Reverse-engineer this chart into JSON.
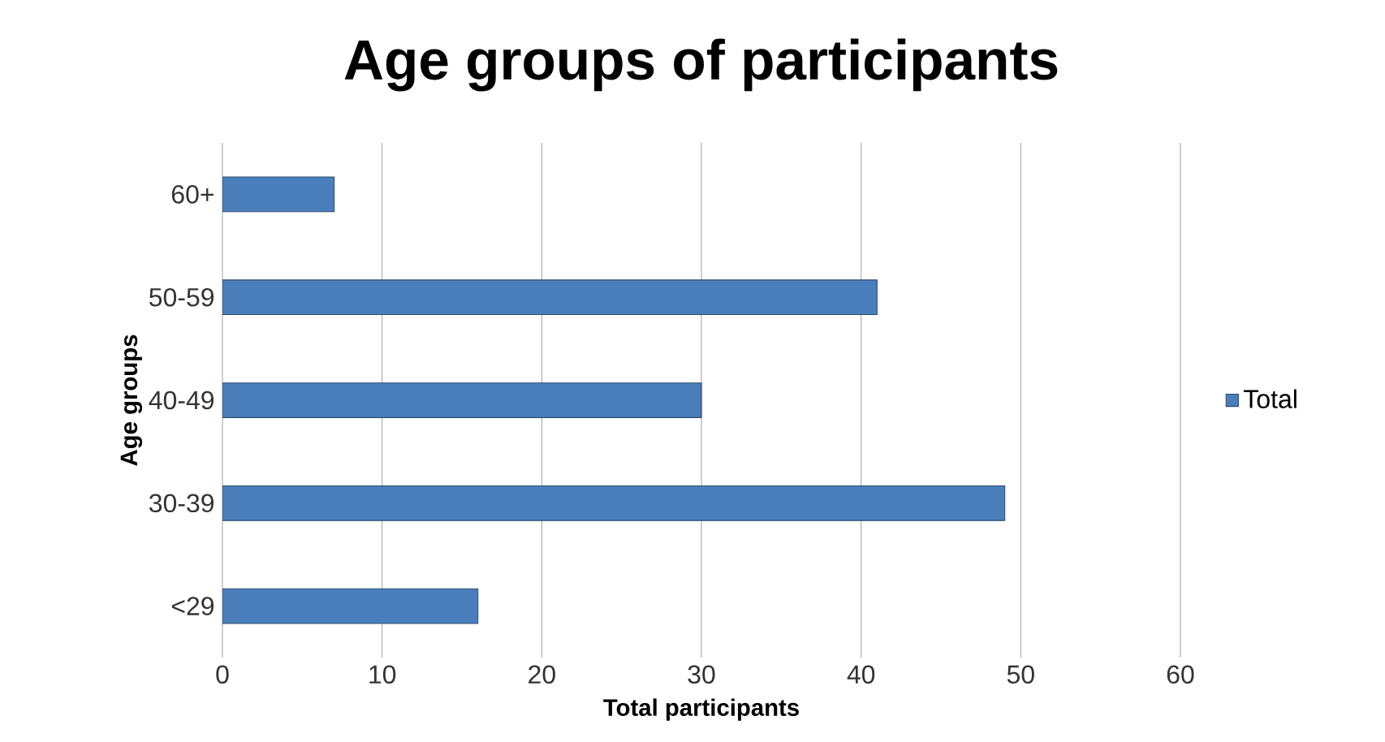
{
  "chart_data": {
    "type": "bar",
    "orientation": "horizontal",
    "title": "Age groups of participants",
    "xlabel": "Total participants",
    "ylabel": "Age groups",
    "categories": [
      "60+",
      "50-59",
      "40-49",
      "30-39",
      "<29"
    ],
    "series": [
      {
        "name": "Total",
        "color": "#4a7ebb",
        "values": [
          7,
          41,
          30,
          49,
          16
        ]
      }
    ],
    "xlim": [
      0,
      60
    ],
    "xticks": [
      0,
      10,
      20,
      30,
      40,
      50,
      60
    ],
    "grid": "x",
    "legend": "right"
  }
}
